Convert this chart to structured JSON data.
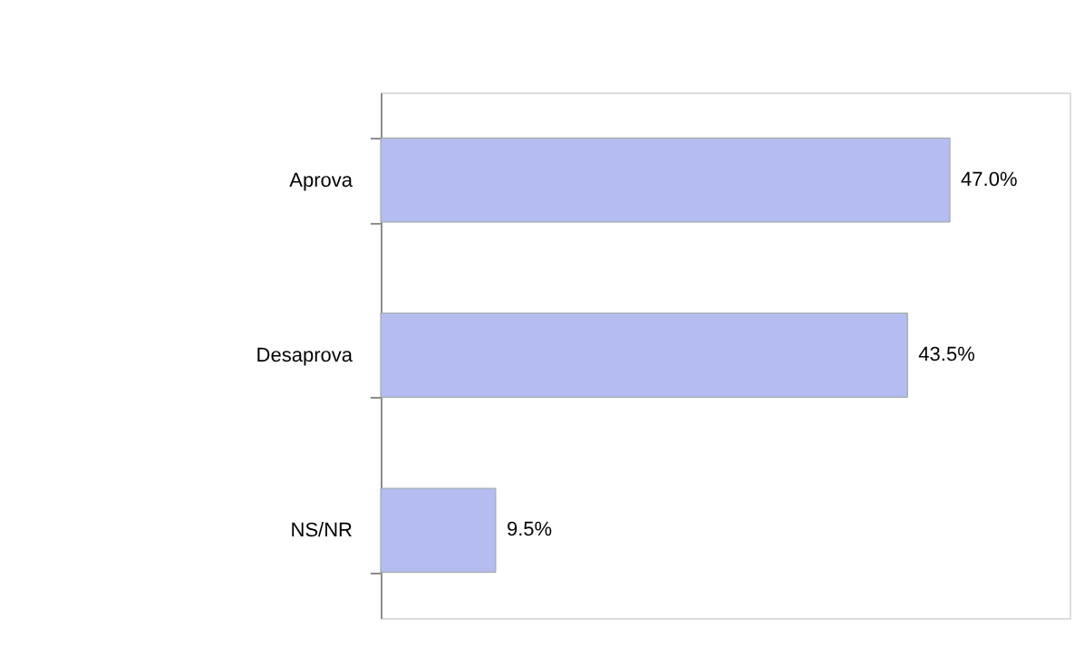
{
  "chart_data": {
    "type": "bar",
    "orientation": "horizontal",
    "categories": [
      "Aprova",
      "Desaprova",
      "NS/NR"
    ],
    "values": [
      47.0,
      43.5,
      9.5
    ],
    "value_labels": [
      "47.0%",
      "43.5%",
      "9.5%"
    ],
    "color": "#b4bcf0",
    "grid": false
  }
}
